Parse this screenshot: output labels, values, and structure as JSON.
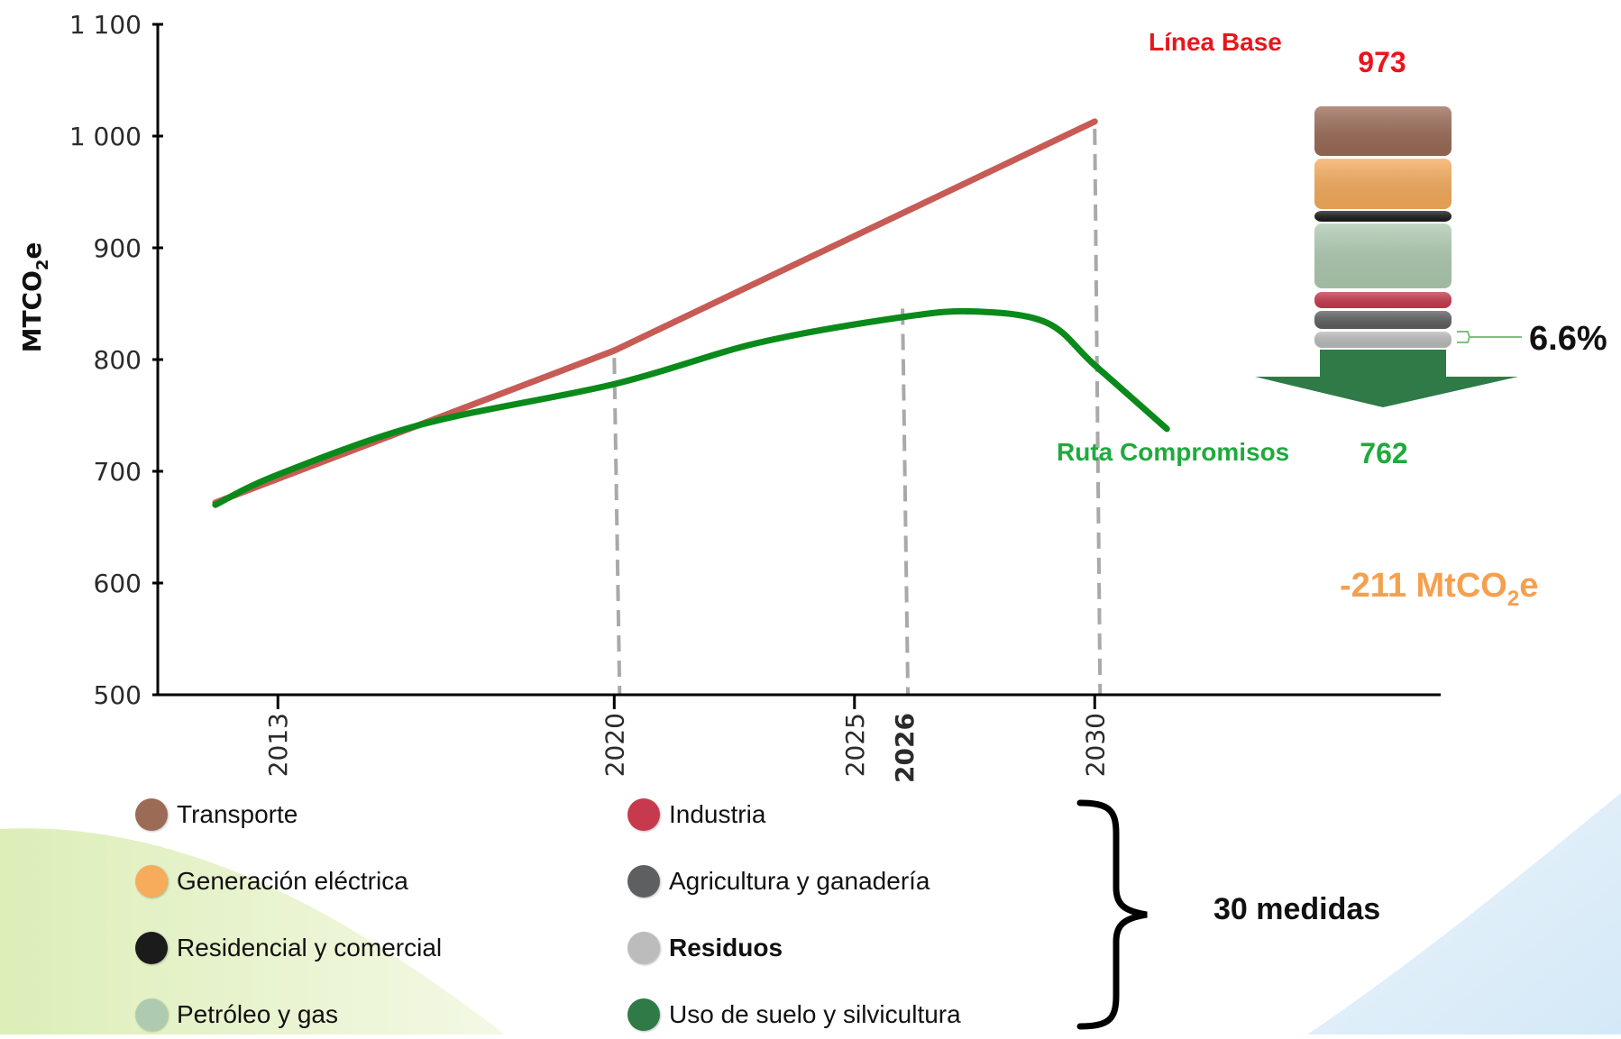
{
  "chart_data": {
    "type": "line",
    "ylabel": "MTCO",
    "ylabel_sub": "2",
    "ylabel_suffix": "e",
    "ylim": [
      500,
      1100
    ],
    "yticks": [
      {
        "value": 500,
        "label": "500"
      },
      {
        "value": 600,
        "label": "600"
      },
      {
        "value": 700,
        "label": "700"
      },
      {
        "value": 800,
        "label": "800"
      },
      {
        "value": 900,
        "label": "900"
      },
      {
        "value": 1000,
        "label": "1 000"
      },
      {
        "value": 1100,
        "label": "1 100"
      }
    ],
    "xlim": [
      2010.5,
      2037.2
    ],
    "xticks": [
      {
        "value": 2013,
        "label": "2013"
      },
      {
        "value": 2020,
        "label": "2020"
      },
      {
        "value": 2025,
        "label": "2025"
      },
      {
        "value": 2030,
        "label": "2030"
      }
    ],
    "highlight_tick": {
      "value": 2026,
      "label": "2026",
      "color": "#c0273b"
    },
    "guide_lines": [
      2020,
      2026,
      2030
    ],
    "series": [
      {
        "name": "Línea Base",
        "color": "#c75b55",
        "points": [
          [
            2011.7,
            672
          ],
          [
            2020,
            808
          ],
          [
            2030,
            1013
          ]
        ]
      },
      {
        "name": "Ruta Compromisos",
        "color": "#0a8a1a",
        "points": [
          [
            2011.7,
            670
          ],
          [
            2013,
            697
          ],
          [
            2016,
            742
          ],
          [
            2020,
            778
          ],
          [
            2023,
            815
          ],
          [
            2026,
            838
          ],
          [
            2027.5,
            843
          ],
          [
            2029,
            833
          ],
          [
            2030,
            795
          ],
          [
            2031.5,
            738
          ]
        ]
      }
    ],
    "annotations": {
      "baseline_label": {
        "text": "Línea Base",
        "color": "#e8161b"
      },
      "route_label": {
        "text": "Ruta Compromisos",
        "color": "#1faa3c"
      },
      "top_value": {
        "text": "973",
        "color": "#e8161b"
      },
      "bottom_value": {
        "text": "762",
        "color": "#1faa3c"
      },
      "percent": {
        "text": "6.6%",
        "color": "#111111"
      },
      "reduction": {
        "prefix": "-211 MtCO",
        "sub": "2",
        "suffix": "e",
        "color": "#f5a04f"
      }
    },
    "stack": {
      "top_value": 973,
      "bottom_value": 762,
      "segments": [
        {
          "sector": "Transporte",
          "color": "#9b6b56"
        },
        {
          "sector": "Generación eléctrica",
          "color": "#f6ac5b"
        },
        {
          "sector": "Residencial y comercial",
          "color": "#1b1b1b"
        },
        {
          "sector": "Petróleo y gas",
          "color": "#aecbb1"
        },
        {
          "sector": "Industria",
          "color": "#c73a4d"
        },
        {
          "sector": "Agricultura y ganadería",
          "color": "#5e5f61"
        },
        {
          "sector": "Residuos",
          "color": "#bcbcbc"
        },
        {
          "sector": "Uso de suelo y silvicultura",
          "color": "#2f7a47"
        }
      ]
    },
    "legend": [
      {
        "label": "Transporte",
        "color": "#9b6b56",
        "bold": false
      },
      {
        "label": "Generación eléctrica",
        "color": "#f6ac5b",
        "bold": false
      },
      {
        "label": "Residencial y comercial",
        "color": "#1b1b1b",
        "bold": false
      },
      {
        "label": "Petróleo y gas",
        "color": "#aecbb1",
        "bold": false
      },
      {
        "label": "Industria",
        "color": "#c73a4d",
        "bold": false
      },
      {
        "label": "Agricultura y ganadería",
        "color": "#5e5f61",
        "bold": false
      },
      {
        "label": "Residuos",
        "color": "#bcbcbc",
        "bold": true
      },
      {
        "label": "Uso de suelo y silvicultura",
        "color": "#2f7a47",
        "bold": false
      }
    ],
    "brace_note": "30 medidas"
  }
}
